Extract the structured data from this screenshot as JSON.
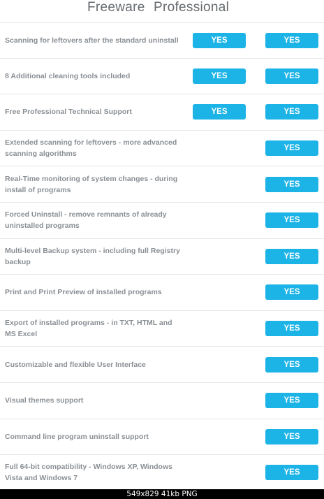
{
  "header": {
    "freeware_label": "Freeware",
    "professional_label": "Professional"
  },
  "colors": {
    "button": "#1cb3e6",
    "feature_text": "#8a8f94",
    "divider": "#e6e6e6"
  },
  "rows": [
    {
      "feature": "Scanning for leftovers after the standard uninstall",
      "freeware": "YES",
      "professional": "YES"
    },
    {
      "feature": "8 Additional cleaning tools included",
      "freeware": "YES",
      "professional": "YES"
    },
    {
      "feature": "Free Professional Technical Support",
      "freeware": "YES",
      "professional": "YES"
    },
    {
      "feature": "Extended scanning for leftovers - more advanced scanning algorithms",
      "freeware": null,
      "professional": "YES"
    },
    {
      "feature": "Real-Time monitoring of system changes - during install of programs",
      "freeware": null,
      "professional": "YES"
    },
    {
      "feature": "Forced Uninstall - remove remnants of already uninstalled programs",
      "freeware": null,
      "professional": "YES"
    },
    {
      "feature": "Multi-level Backup system - including full Registry backup",
      "freeware": null,
      "professional": "YES"
    },
    {
      "feature": "Print and Print Preview of installed programs",
      "freeware": null,
      "professional": "YES"
    },
    {
      "feature": "Export of installed programs - in TXT, HTML and MS Excel",
      "freeware": null,
      "professional": "YES"
    },
    {
      "feature": "Customizable and flexible User Interface",
      "freeware": null,
      "professional": "YES"
    },
    {
      "feature": "Visual themes support",
      "freeware": null,
      "professional": "YES"
    },
    {
      "feature": "Command line program uninstall support",
      "freeware": null,
      "professional": "YES"
    },
    {
      "feature": "Full 64-bit compatibility - Windows XP, Windows Vista and Windows 7",
      "freeware": null,
      "professional": "YES"
    }
  ],
  "image_info": "549x829  41kb  PNG"
}
